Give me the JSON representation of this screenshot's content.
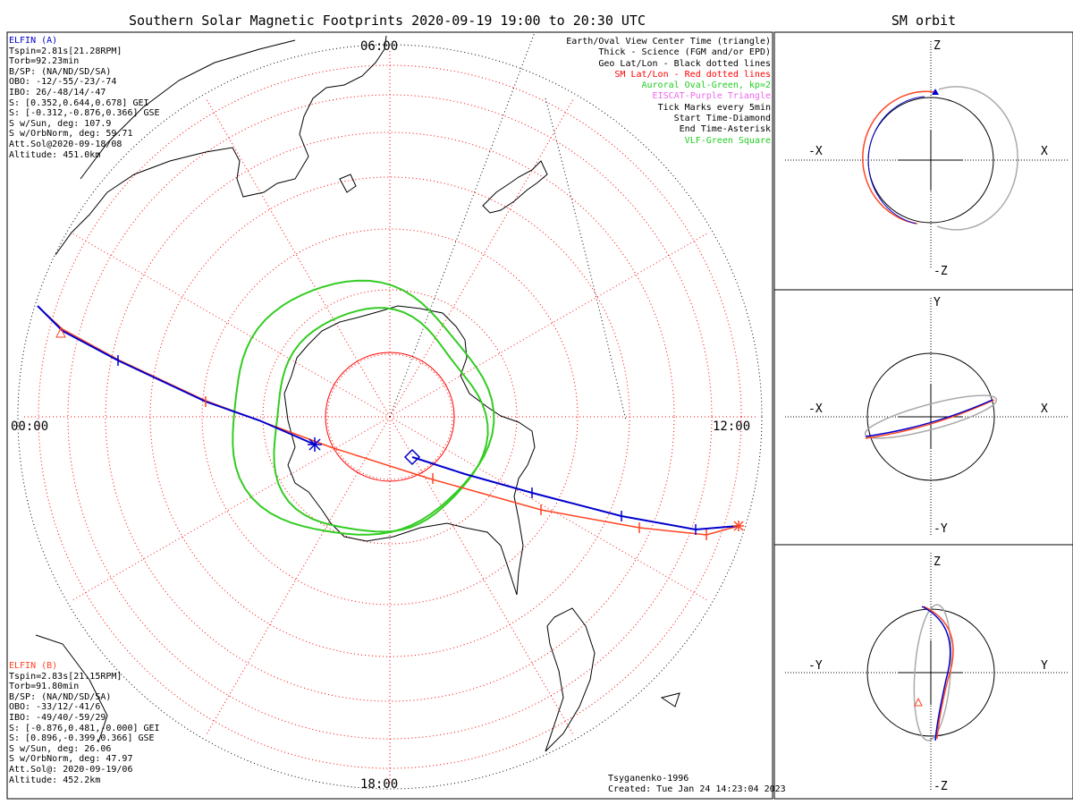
{
  "main_title": "Southern Solar Magnetic Footprints 2020-09-19 19:00 to 20:30 UTC",
  "side_title": "SM orbit",
  "sat_a": {
    "name": "ELFIN (A)",
    "lines": [
      "Tspin=2.81s[21.28RPM]",
      "Torb=92.23min",
      "B/SP: (NA/ND/SD/SA)",
      "OBO: -12/-55/-23/-74",
      "IBO: 26/-48/14/-47",
      "S: [0.352,0.644,0.678] GEI",
      "S: [-0.312,-0.876,0.366] GSE",
      "S w/Sun, deg: 107.9",
      "S w/OrbNorm, deg: 59.71",
      "Att.Sol@2020-09-18/08",
      "Altitude: 451.0km"
    ]
  },
  "sat_b": {
    "name": "ELFIN (B)",
    "lines": [
      "Tspin=2.83s[21.15RPM]",
      "Torb=91.80min",
      "B/SP: (NA/ND/SD/SA)",
      "OBO: -33/12/-41/6",
      "IBO: -49/40/-59/29",
      "S: [-0.876,0.481,-0.000] GEI",
      "S: [0.896,-0.399,0.366] GSE",
      "S w/Sun, deg: 26.06",
      "S w/OrbNorm, deg: 47.97",
      "Att.Sol@: 2020-09-19/06",
      "Altitude: 452.2km"
    ]
  },
  "legend": [
    {
      "text": "Earth/Oval View Center Time (triangle)",
      "color": "#000000"
    },
    {
      "text": "Thick - Science (FGM and/or EPD)",
      "color": "#000000"
    },
    {
      "text": "Geo Lat/Lon - Black dotted lines",
      "color": "#000000"
    },
    {
      "text": "SM Lat/Lon - Red dotted lines",
      "color": "#ff0000"
    },
    {
      "text": "Auroral Oval-Green, kp=2",
      "color": "#22cc22"
    },
    {
      "text": "EISCAT-Purple Triangle",
      "color": "#ee66ee"
    },
    {
      "text": "Tick Marks every 5min",
      "color": "#000000"
    },
    {
      "text": "Start Time-Diamond",
      "color": "#000000"
    },
    {
      "text": "End Time-Asterisk",
      "color": "#000000"
    },
    {
      "text": "VLF-Green Square",
      "color": "#22cc22"
    }
  ],
  "mlt_labels": {
    "top": "06:00",
    "left": "00:00",
    "right": "12:00",
    "bottom": "18:00"
  },
  "credits": [
    "Tsyganenko-1996",
    "Created: Tue Jan 24 14:23:04 2023"
  ],
  "orbit_panels": [
    {
      "up": "Z",
      "down": "-Z",
      "left": "-X",
      "right": "X"
    },
    {
      "up": "Y",
      "down": "-Y",
      "left": "-X",
      "right": "X"
    },
    {
      "up": "Z",
      "down": "-Z",
      "left": "-Y",
      "right": "Y"
    }
  ],
  "colors": {
    "sat_a": "#0000cc",
    "sat_b": "#ff4422",
    "oval": "#33cc22",
    "grid": "#ff0000",
    "geo": "#000000",
    "orbit_ref": "#aaaaaa"
  },
  "chart_data": {
    "type": "polar_footprint_map",
    "hemisphere": "south",
    "series": [
      {
        "name": "ELFIN (A)",
        "color": "#0000cc"
      },
      {
        "name": "ELFIN (B)",
        "color": "#ff4422"
      }
    ],
    "mlt_axis": [
      "00:00",
      "06:00",
      "12:00",
      "18:00"
    ],
    "tick_interval": "5min"
  }
}
